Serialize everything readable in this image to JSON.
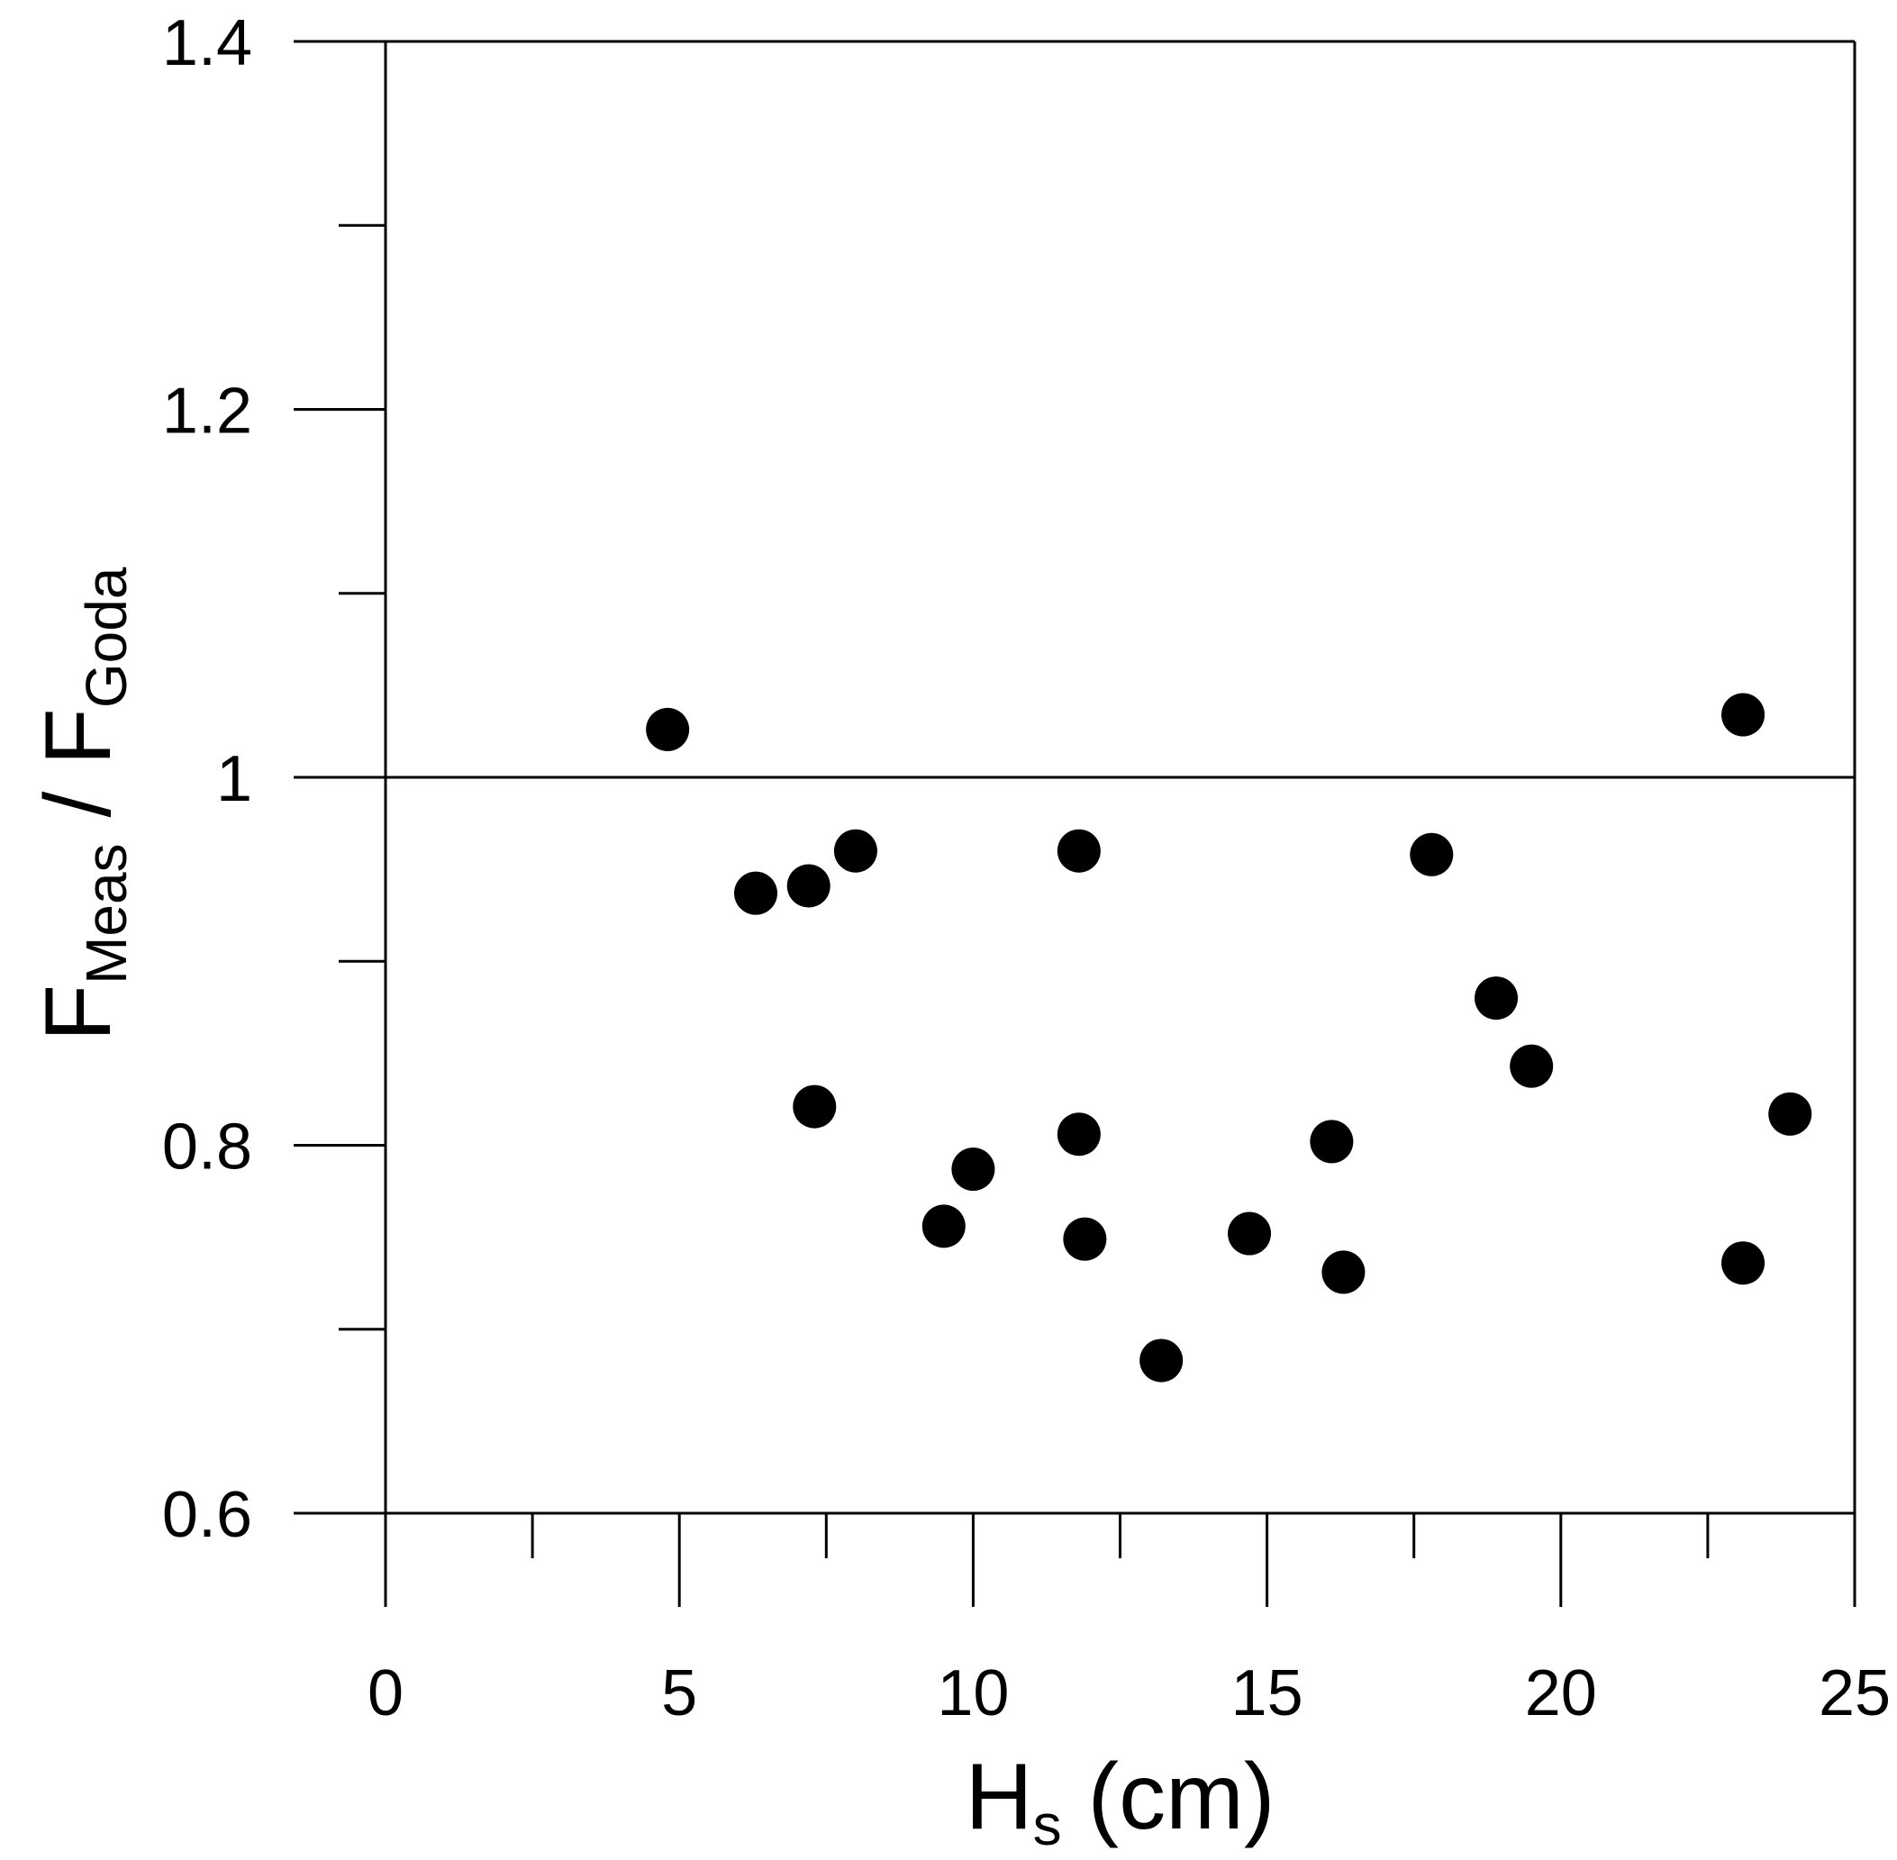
{
  "chart_data": {
    "type": "scatter",
    "title": "",
    "xlabel": {
      "main": "H",
      "sub": "s",
      "rest": " (cm)"
    },
    "ylabel": {
      "num_main": "F",
      "num_sub": "Meas",
      "sep": " / ",
      "den_main": "F",
      "den_sub": "Goda"
    },
    "xlim": [
      0,
      25
    ],
    "ylim": [
      0.6,
      1.4
    ],
    "x_major_ticks": [
      0,
      5,
      10,
      15,
      20,
      25
    ],
    "x_tick_labels": [
      "0",
      "5",
      "10",
      "15",
      "20",
      "25"
    ],
    "x_minor_ticks": [
      2.5,
      7.5,
      12.5,
      17.5,
      22.5
    ],
    "y_major_ticks": [
      0.6,
      0.8,
      1.0,
      1.2,
      1.4
    ],
    "y_tick_labels": [
      "0.6",
      "0.8",
      "1",
      "1.2",
      "1.4"
    ],
    "y_minor_ticks": [
      0.7,
      0.9,
      1.1,
      1.3
    ],
    "reference_line_y": 1.0,
    "marker_color": "#000000",
    "points": [
      {
        "x": 4.8,
        "y": 1.026
      },
      {
        "x": 6.3,
        "y": 0.937
      },
      {
        "x": 7.2,
        "y": 0.941
      },
      {
        "x": 8.0,
        "y": 0.96
      },
      {
        "x": 7.3,
        "y": 0.821
      },
      {
        "x": 9.5,
        "y": 0.756
      },
      {
        "x": 10.0,
        "y": 0.787
      },
      {
        "x": 11.8,
        "y": 0.96
      },
      {
        "x": 11.8,
        "y": 0.806
      },
      {
        "x": 11.9,
        "y": 0.749
      },
      {
        "x": 13.2,
        "y": 0.683
      },
      {
        "x": 14.7,
        "y": 0.752
      },
      {
        "x": 16.1,
        "y": 0.802
      },
      {
        "x": 16.3,
        "y": 0.731
      },
      {
        "x": 17.8,
        "y": 0.958
      },
      {
        "x": 18.9,
        "y": 0.88
      },
      {
        "x": 19.5,
        "y": 0.843
      },
      {
        "x": 23.1,
        "y": 1.034
      },
      {
        "x": 23.1,
        "y": 0.736
      },
      {
        "x": 23.9,
        "y": 0.817
      }
    ]
  }
}
